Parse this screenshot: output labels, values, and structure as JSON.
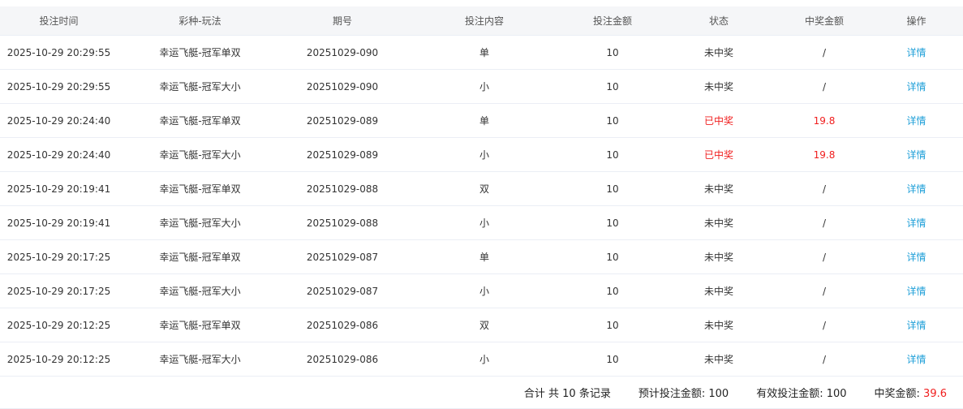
{
  "columns": [
    "投注时间",
    "彩种-玩法",
    "期号",
    "投注内容",
    "投注金额",
    "状态",
    "中奖金额",
    "操作"
  ],
  "rows": [
    {
      "time": "2025-10-29 20:29:55",
      "game": "幸运飞艇-冠军单双",
      "issue": "20251029-090",
      "content": "单",
      "amount": "10",
      "status": "未中奖",
      "win": "/",
      "won": false,
      "action": "详情"
    },
    {
      "time": "2025-10-29 20:29:55",
      "game": "幸运飞艇-冠军大小",
      "issue": "20251029-090",
      "content": "小",
      "amount": "10",
      "status": "未中奖",
      "win": "/",
      "won": false,
      "action": "详情"
    },
    {
      "time": "2025-10-29 20:24:40",
      "game": "幸运飞艇-冠军单双",
      "issue": "20251029-089",
      "content": "单",
      "amount": "10",
      "status": "已中奖",
      "win": "19.8",
      "won": true,
      "action": "详情"
    },
    {
      "time": "2025-10-29 20:24:40",
      "game": "幸运飞艇-冠军大小",
      "issue": "20251029-089",
      "content": "小",
      "amount": "10",
      "status": "已中奖",
      "win": "19.8",
      "won": true,
      "action": "详情"
    },
    {
      "time": "2025-10-29 20:19:41",
      "game": "幸运飞艇-冠军单双",
      "issue": "20251029-088",
      "content": "双",
      "amount": "10",
      "status": "未中奖",
      "win": "/",
      "won": false,
      "action": "详情"
    },
    {
      "time": "2025-10-29 20:19:41",
      "game": "幸运飞艇-冠军大小",
      "issue": "20251029-088",
      "content": "小",
      "amount": "10",
      "status": "未中奖",
      "win": "/",
      "won": false,
      "action": "详情"
    },
    {
      "time": "2025-10-29 20:17:25",
      "game": "幸运飞艇-冠军单双",
      "issue": "20251029-087",
      "content": "单",
      "amount": "10",
      "status": "未中奖",
      "win": "/",
      "won": false,
      "action": "详情"
    },
    {
      "time": "2025-10-29 20:17:25",
      "game": "幸运飞艇-冠军大小",
      "issue": "20251029-087",
      "content": "小",
      "amount": "10",
      "status": "未中奖",
      "win": "/",
      "won": false,
      "action": "详情"
    },
    {
      "time": "2025-10-29 20:12:25",
      "game": "幸运飞艇-冠军单双",
      "issue": "20251029-086",
      "content": "双",
      "amount": "10",
      "status": "未中奖",
      "win": "/",
      "won": false,
      "action": "详情"
    },
    {
      "time": "2025-10-29 20:12:25",
      "game": "幸运飞艇-冠军大小",
      "issue": "20251029-086",
      "content": "小",
      "amount": "10",
      "status": "未中奖",
      "win": "/",
      "won": false,
      "action": "详情"
    }
  ],
  "footer": {
    "total": "合计 共 10 条记录",
    "expected_label": "预计投注金额: ",
    "expected_value": "100",
    "valid_label": "有效投注金额: ",
    "valid_value": "100",
    "win_label": "中奖金额: ",
    "win_value": "39.6"
  },
  "colors": {
    "win": "#f01e1e",
    "link": "#1e9fd8",
    "header_bg": "#f5f6f8"
  }
}
